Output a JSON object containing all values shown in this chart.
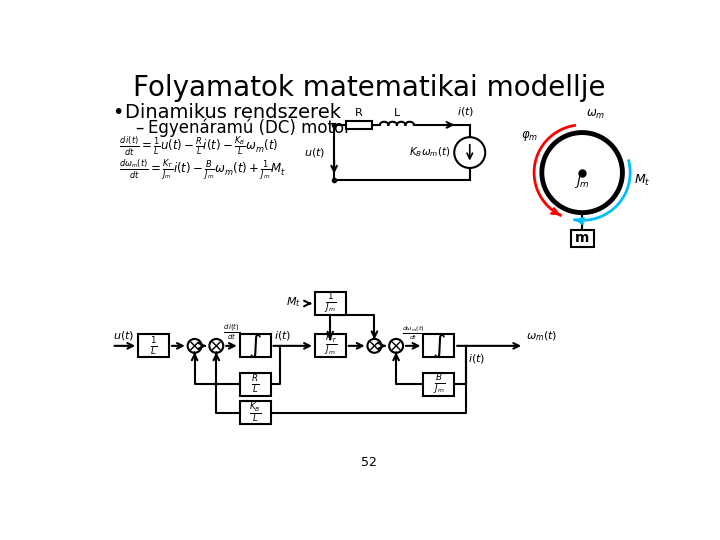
{
  "title": "Folyamatok matematikai modellje",
  "bullet1": "Dinamikus rendszerek",
  "sub1": "Egyenáramú (DC) motor",
  "page_num": "52",
  "bg_color": "#ffffff",
  "text_color": "#000000",
  "title_fontsize": 20,
  "bullet_fontsize": 14,
  "sub_fontsize": 12
}
